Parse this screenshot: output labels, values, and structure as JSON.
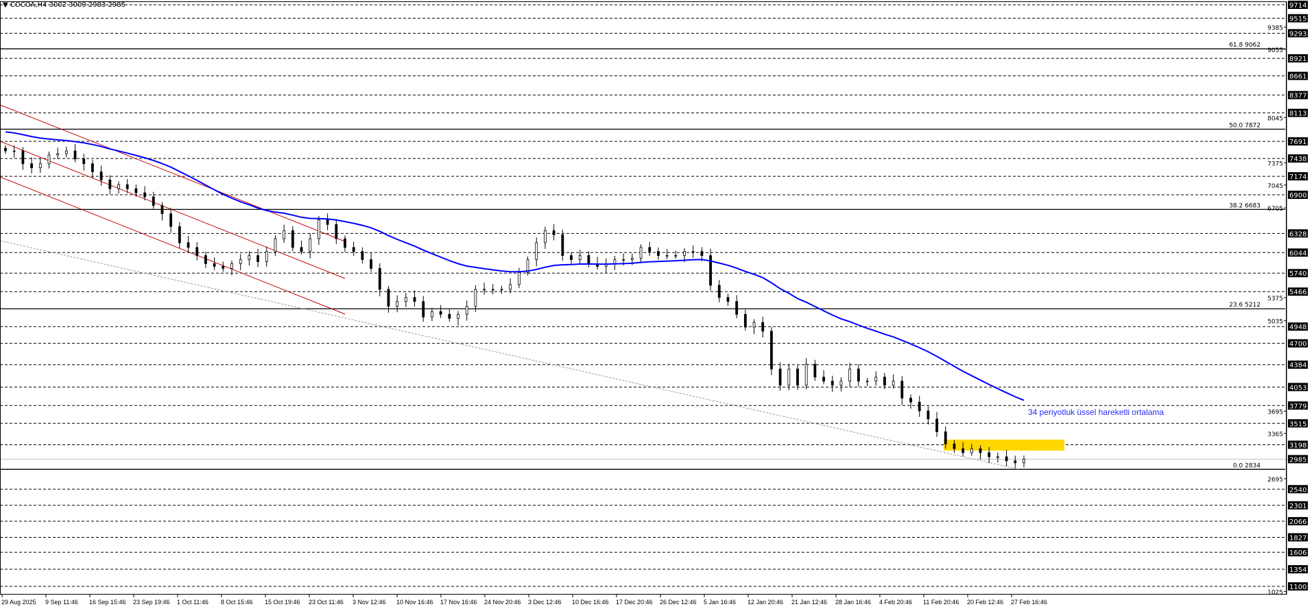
{
  "header": {
    "symbol_line": "COCOA,H4  3002 3009 2983 2985",
    "menu_arrow_icon": "triangle-down"
  },
  "annotation": {
    "ema_label": "34 periyotluk üssel hareketli ortalama",
    "ema_color": "#0000ff",
    "highlight_color": "#ffd700",
    "channel_color": "#c00000"
  },
  "chart_data": {
    "type": "candlestick",
    "symbol": "COCOA",
    "timeframe": "H4",
    "ohlc_last": {
      "open": 3002,
      "high": 3009,
      "low": 2983,
      "close": 2985
    },
    "current_price": 2985,
    "ylim": [
      1025,
      9714
    ],
    "closes": [
      7550,
      7550,
      7360,
      7300,
      7360,
      7490,
      7510,
      7550,
      7430,
      7360,
      7240,
      7120,
      6990,
      7050,
      6990,
      6930,
      6870,
      6740,
      6620,
      6430,
      6190,
      6120,
      6000,
      5880,
      5840,
      5810,
      5880,
      5940,
      6000,
      5910,
      6060,
      6250,
      6370,
      6120,
      6060,
      6250,
      6530,
      6460,
      6250,
      6120,
      6060,
      5940,
      5810,
      5500,
      5250,
      5320,
      5380,
      5320,
      5090,
      5170,
      5130,
      5070,
      5130,
      5250,
      5500,
      5500,
      5500,
      5500,
      5570,
      5750,
      5940,
      6190,
      6370,
      6310,
      6000,
      5940,
      6000,
      5880,
      5840,
      5880,
      5940,
      5940,
      5960,
      6120,
      6060,
      6000,
      6000,
      6000,
      6060,
      6060,
      6000,
      5560,
      5380,
      5320,
      5130,
      4940,
      5010,
      4880,
      4320,
      4080,
      4320,
      4080,
      4390,
      4200,
      4140,
      4080,
      4140,
      4320,
      4140,
      4140,
      4200,
      4080,
      4140,
      3890,
      3830,
      3700,
      3580,
      3390,
      3210,
      3140,
      3080,
      3140,
      3080,
      3020,
      3020,
      2960,
      2930,
      2985
    ],
    "ema_period": 34,
    "fibonacci": [
      {
        "level": "61.8",
        "price": 9062
      },
      {
        "level": "50.0",
        "price": 7872
      },
      {
        "level": "38.2",
        "price": 6683
      },
      {
        "level": "23.6",
        "price": 5212
      },
      {
        "level": "0.0",
        "price": 2834
      }
    ],
    "horizontal_levels": [
      9714,
      9515,
      9293,
      8921,
      8661,
      8377,
      8113,
      7691,
      7438,
      7174,
      6900,
      6328,
      6044,
      5740,
      5466,
      4948,
      4700,
      4384,
      4053,
      3779,
      3515,
      3198,
      2985,
      2540,
      2301,
      2066,
      1827,
      1606,
      1354,
      1100
    ],
    "axis_ticks": [
      9385,
      9055,
      8045,
      7375,
      7045,
      6705,
      5375,
      5035,
      3695,
      3365,
      2695,
      1025
    ],
    "x_tick_labels": [
      "29 Aug 2025",
      "9 Sep 11:46",
      "16 Sep 15:46",
      "23 Sep 19:46",
      "1 Oct 11:46",
      "8 Oct 15:46",
      "15 Oct 19:46",
      "23 Oct 11:46",
      "3 Nov 12:46",
      "10 Nov 16:46",
      "17 Nov 16:46",
      "24 Nov 20:46",
      "3 Dec 12:46",
      "10 Dec 16:46",
      "17 Dec 20:46",
      "26 Dec 12:46",
      "5 Jan 16:46",
      "12 Jan 20:46",
      "21 Jan 12:46",
      "28 Jan 16:46",
      "4 Feb 20:46",
      "11 Feb 20:46",
      "20 Feb 12:46",
      "27 Feb 16:46"
    ],
    "grid": false
  }
}
